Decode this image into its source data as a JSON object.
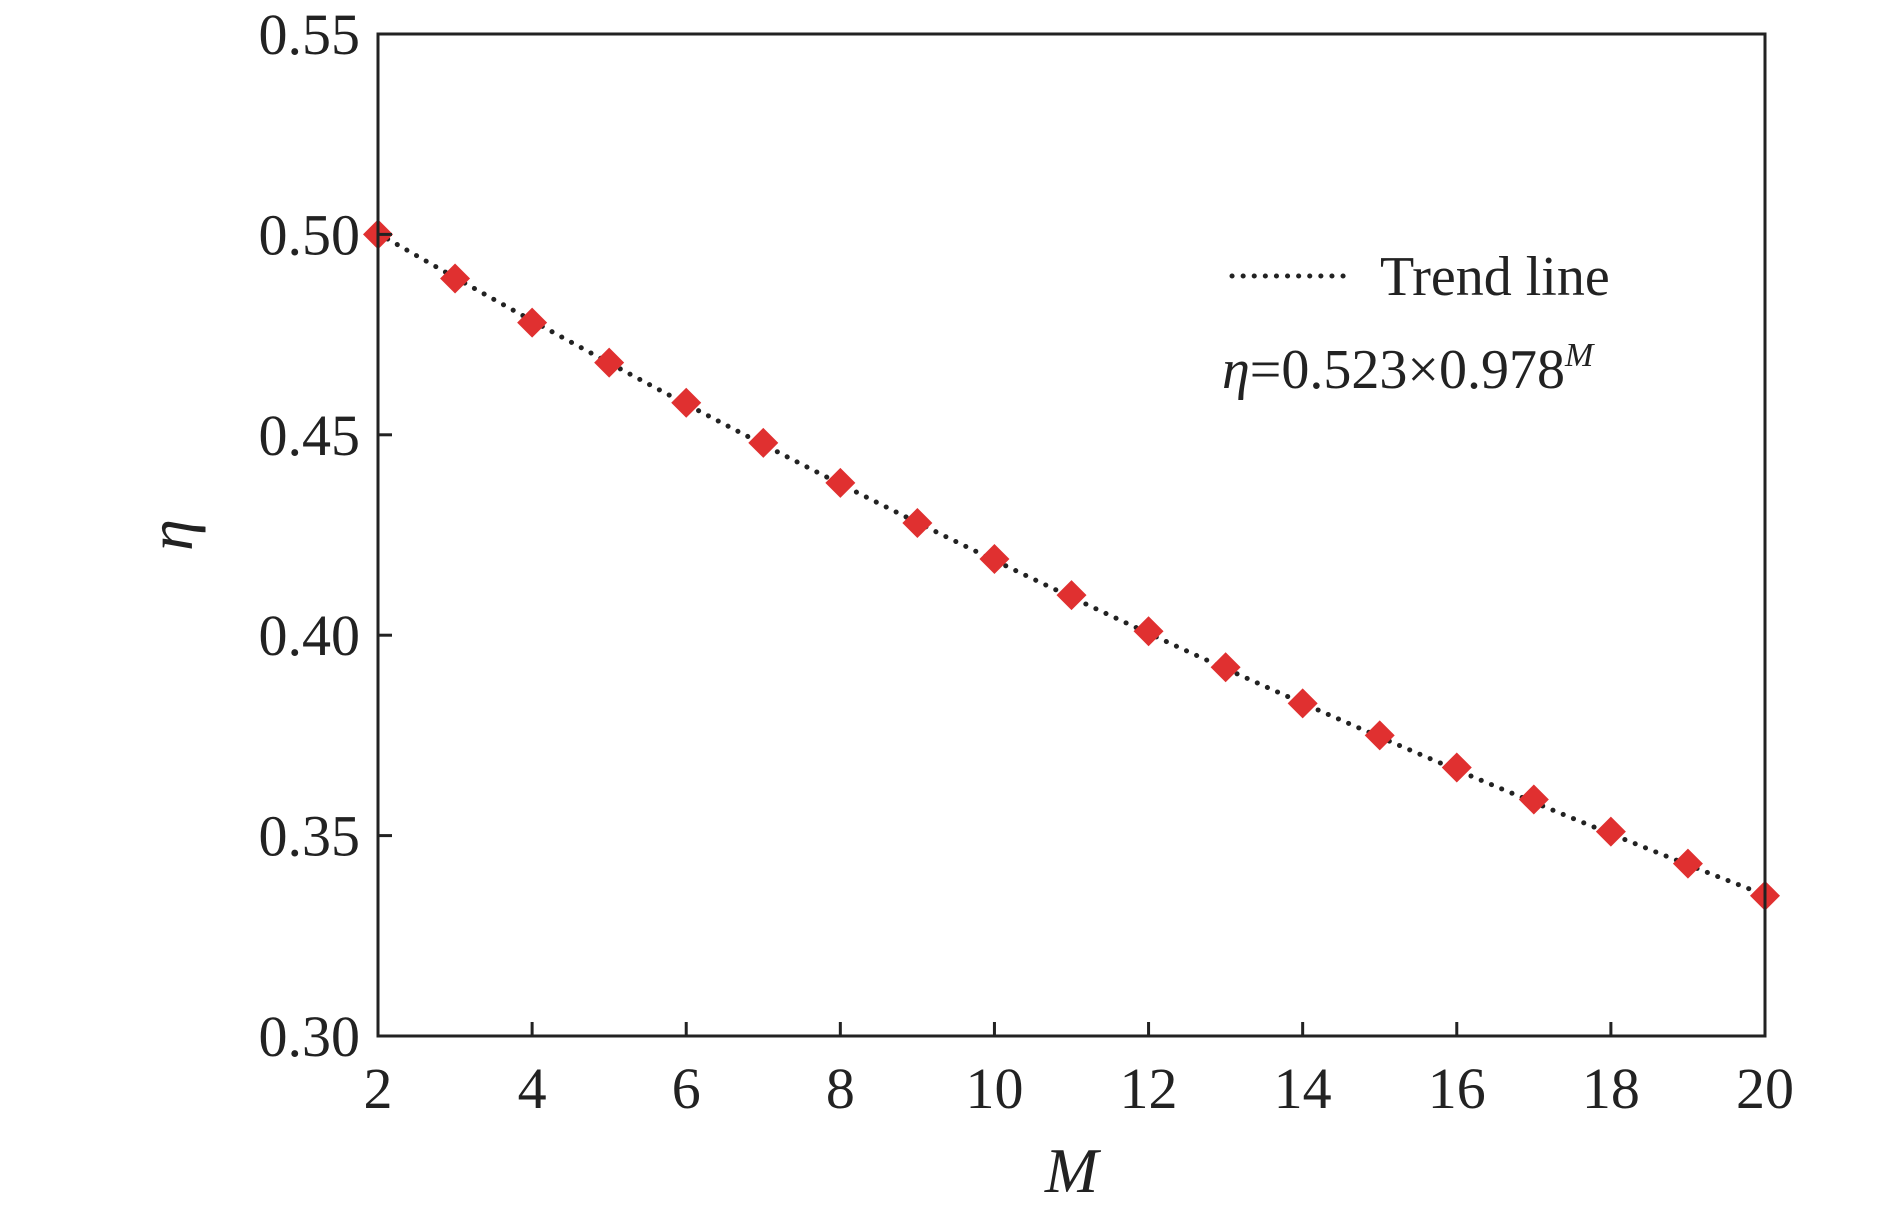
{
  "chart_data": {
    "type": "scatter",
    "xlabel": "M",
    "ylabel": "η",
    "xlim": [
      2,
      20
    ],
    "ylim": [
      0.3,
      0.55
    ],
    "x_ticks": [
      "2",
      "4",
      "6",
      "8",
      "10",
      "12",
      "14",
      "16",
      "18",
      "20"
    ],
    "y_ticks": [
      "0.30",
      "0.35",
      "0.40",
      "0.45",
      "0.50",
      "0.55"
    ],
    "grid": false,
    "legend_position": "top-right",
    "marker_color": "#e03030",
    "trend_color": "#222222",
    "series": [
      {
        "x": [
          2,
          3,
          4,
          5,
          6,
          7,
          8,
          9,
          10,
          11,
          12,
          13,
          14,
          15,
          16,
          17,
          18,
          19,
          20
        ],
        "values": [
          0.5,
          0.489,
          0.478,
          0.468,
          0.458,
          0.448,
          0.438,
          0.428,
          0.419,
          0.41,
          0.401,
          0.392,
          0.383,
          0.375,
          0.367,
          0.359,
          0.351,
          0.343,
          0.335
        ]
      }
    ],
    "trend_line": {
      "name": "Trend line",
      "coefficient": 0.523,
      "base": 0.978
    },
    "equation": {
      "lhs": "η",
      "rhs": "=0.523×0.978",
      "exponent": "M"
    }
  }
}
